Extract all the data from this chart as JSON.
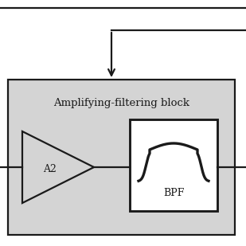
{
  "bg_color": "#ffffff",
  "block_bg": "#d4d4d4",
  "bpf_bg": "#ffffff",
  "line_color": "#1a1a1a",
  "text_color": "#1a1a1a",
  "title": "Amplifying-filtering block",
  "amp_label": "A2",
  "filter_label": "BPF",
  "fig_w": 3.09,
  "fig_h": 3.09,
  "dpi": 100
}
